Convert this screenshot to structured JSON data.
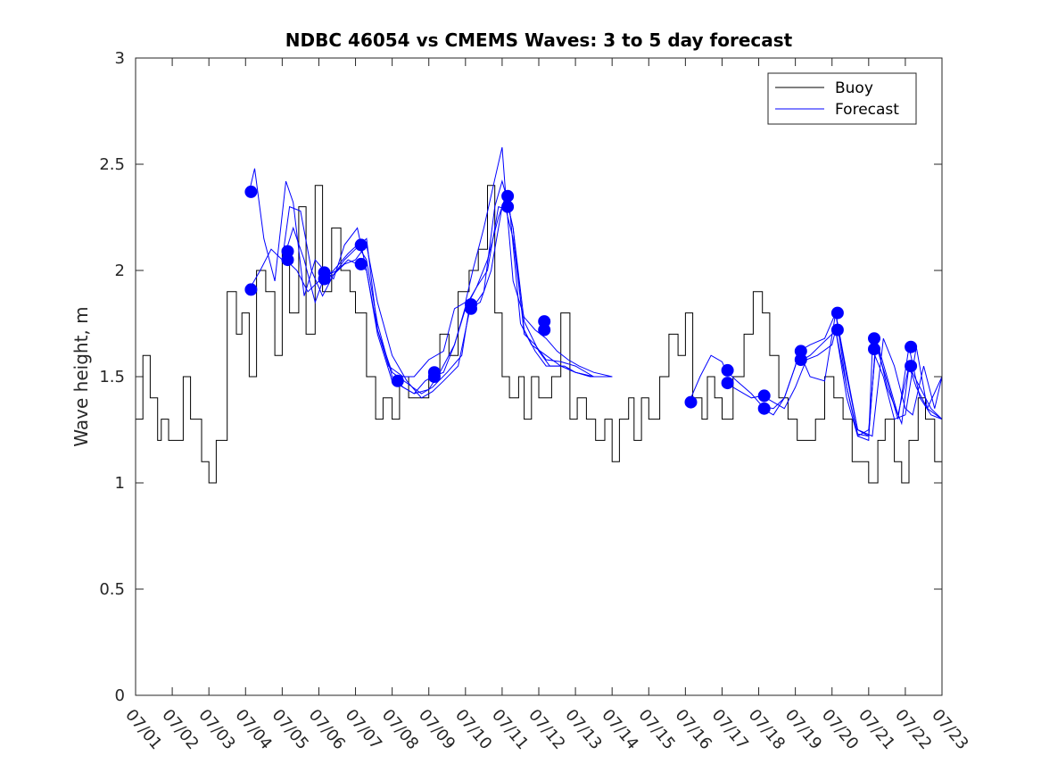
{
  "chart_data": {
    "type": "line",
    "title": "NDBC 46054 vs CMEMS Waves: 3 to 5 day forecast",
    "xlabel": "",
    "ylabel": "Wave height, m",
    "xlim": [
      "07/01",
      "07/23"
    ],
    "ylim": [
      0,
      3
    ],
    "x_ticks": [
      "07/01",
      "07/02",
      "07/03",
      "07/04",
      "07/05",
      "07/06",
      "07/07",
      "07/08",
      "07/09",
      "07/10",
      "07/11",
      "07/12",
      "07/13",
      "07/14",
      "07/15",
      "07/16",
      "07/17",
      "07/18",
      "07/19",
      "07/20",
      "07/21",
      "07/22",
      "07/23"
    ],
    "y_ticks": [
      "0",
      "0.5",
      "1",
      "1.5",
      "2",
      "2.5",
      "3"
    ],
    "grid": false,
    "legend": {
      "position": "top-right",
      "entries": [
        "Buoy",
        "Forecast"
      ]
    },
    "colors": {
      "buoy": "#000000",
      "forecast": "#0000ff"
    },
    "series": [
      {
        "name": "Buoy",
        "x_day": [
          0.0,
          0.2,
          0.4,
          0.6,
          0.7,
          0.9,
          1.0,
          1.3,
          1.5,
          1.8,
          2.0,
          2.2,
          2.5,
          2.75,
          2.9,
          3.1,
          3.3,
          3.55,
          3.8,
          4.0,
          4.2,
          4.45,
          4.65,
          4.9,
          5.1,
          5.35,
          5.6,
          5.85,
          6.0,
          6.3,
          6.55,
          6.75,
          7.0,
          7.2,
          7.45,
          7.75,
          8.0,
          8.3,
          8.55,
          8.8,
          9.1,
          9.35,
          9.6,
          9.8,
          10.0,
          10.2,
          10.45,
          10.6,
          10.8,
          11.0,
          11.15,
          11.35,
          11.6,
          11.85,
          12.05,
          12.3,
          12.55,
          12.8,
          13.0,
          13.2,
          13.45,
          13.6,
          13.8,
          14.0,
          14.3,
          14.55,
          14.8,
          15.0,
          15.2,
          15.45,
          15.6,
          15.8,
          16.0,
          16.3,
          16.6,
          16.85,
          17.1,
          17.3,
          17.55,
          17.8,
          18.05,
          18.3,
          18.55,
          18.8,
          19.05,
          19.3,
          19.55,
          19.8,
          20.0,
          20.25,
          20.45,
          20.7,
          20.9,
          21.1,
          21.35,
          21.55,
          21.8,
          22.0
        ],
        "values": [
          1.3,
          1.6,
          1.4,
          1.2,
          1.3,
          1.2,
          1.2,
          1.5,
          1.3,
          1.1,
          1.0,
          1.2,
          1.9,
          1.7,
          1.8,
          1.5,
          2.0,
          1.9,
          1.6,
          2.1,
          1.8,
          2.3,
          1.7,
          2.4,
          1.9,
          2.2,
          2.0,
          1.9,
          1.8,
          1.5,
          1.3,
          1.4,
          1.3,
          1.5,
          1.4,
          1.4,
          1.5,
          1.7,
          1.6,
          1.9,
          2.0,
          2.1,
          2.4,
          1.8,
          1.5,
          1.4,
          1.5,
          1.3,
          1.5,
          1.4,
          1.4,
          1.5,
          1.8,
          1.3,
          1.4,
          1.3,
          1.2,
          1.3,
          1.1,
          1.3,
          1.4,
          1.2,
          1.4,
          1.3,
          1.5,
          1.7,
          1.6,
          1.8,
          1.4,
          1.3,
          1.5,
          1.4,
          1.3,
          1.5,
          1.7,
          1.9,
          1.8,
          1.6,
          1.4,
          1.3,
          1.2,
          1.2,
          1.3,
          1.5,
          1.4,
          1.3,
          1.1,
          1.1,
          1.0,
          1.2,
          1.3,
          1.1,
          1.0,
          1.2,
          1.4,
          1.3,
          1.1,
          1.5
        ]
      },
      {
        "name": "Forecast",
        "runs": [
          {
            "x_day": [
              3.1,
              3.25,
              3.5,
              3.8,
              4.1,
              4.3,
              4.6,
              4.9,
              5.15,
              5.4,
              5.7,
              6.05,
              6.3,
              6.6,
              6.9,
              7.3,
              7.6,
              8.0,
              8.4,
              8.7,
              9.0,
              9.2,
              9.5,
              9.8,
              10.0,
              10.1,
              10.3,
              10.6,
              10.9,
              11.2,
              11.5,
              11.8,
              12.1,
              12.5,
              13.0
            ],
            "values": [
              2.37,
              2.48,
              2.15,
              1.95,
              2.42,
              2.32,
              1.88,
              2.05,
              2.0,
              1.96,
              2.12,
              2.2,
              2.0,
              1.72,
              1.55,
              1.5,
              1.5,
              1.58,
              1.62,
              1.82,
              1.85,
              2.0,
              2.2,
              2.43,
              2.58,
              2.35,
              1.95,
              1.78,
              1.72,
              1.68,
              1.62,
              1.58,
              1.55,
              1.52,
              1.5
            ]
          },
          {
            "x_day": [
              3.1,
              3.4,
              3.7,
              4.0,
              4.2,
              4.5,
              4.8,
              5.1,
              5.4,
              5.7,
              6.0,
              6.3,
              6.6,
              7.0,
              7.4,
              7.8,
              8.1,
              8.4,
              8.8,
              9.1,
              9.5,
              9.8,
              10.0,
              10.2,
              10.5,
              10.8,
              11.2,
              11.6,
              12.0,
              12.5,
              13.0
            ],
            "values": [
              1.91,
              2.0,
              2.1,
              2.05,
              2.3,
              2.28,
              2.0,
              1.88,
              1.98,
              2.03,
              2.05,
              2.12,
              1.85,
              1.6,
              1.48,
              1.4,
              1.43,
              1.48,
              1.55,
              1.8,
              1.9,
              2.3,
              2.42,
              2.3,
              1.75,
              1.65,
              1.6,
              1.55,
              1.52,
              1.5,
              1.5
            ]
          },
          {
            "x_day": [
              4.1,
              4.3,
              4.6,
              4.9,
              5.15,
              5.4,
              5.7,
              6.0,
              6.3,
              6.6,
              7.0,
              7.4,
              7.8,
              8.1,
              8.5,
              8.9,
              9.1,
              9.4,
              9.7,
              10.0,
              10.1,
              10.3,
              10.6,
              10.9,
              11.2,
              11.6,
              12.0,
              12.5,
              13.0
            ],
            "values": [
              2.09,
              2.2,
              2.05,
              1.85,
              1.97,
              1.98,
              2.05,
              2.1,
              2.15,
              1.72,
              1.52,
              1.47,
              1.42,
              1.45,
              1.52,
              1.6,
              1.82,
              1.85,
              2.0,
              2.3,
              2.35,
              2.2,
              1.7,
              1.65,
              1.58,
              1.57,
              1.55,
              1.5,
              1.5
            ]
          },
          {
            "x_day": [
              4.1,
              4.4,
              4.7,
              5.0,
              5.15,
              5.4,
              5.8,
              6.05,
              6.3,
              6.6,
              7.0,
              7.3,
              7.6,
              7.9,
              8.1,
              8.4,
              8.7,
              9.0,
              9.3,
              9.6,
              9.9,
              10.1,
              10.3,
              10.6,
              10.9,
              11.2,
              11.6,
              12.0,
              12.5,
              13.0
            ],
            "values": [
              2.05,
              2.0,
              1.9,
              1.95,
              1.96,
              2.0,
              2.08,
              2.12,
              2.05,
              1.75,
              1.5,
              1.45,
              1.42,
              1.48,
              1.5,
              1.52,
              1.65,
              1.82,
              1.92,
              2.0,
              2.3,
              2.29,
              2.15,
              1.72,
              1.62,
              1.55,
              1.55,
              1.52,
              1.5,
              1.5
            ]
          },
          {
            "x_day": [
              5.15,
              5.5,
              5.8,
              6.05,
              6.3,
              6.6,
              7.0,
              7.3,
              7.6,
              8.0,
              8.3,
              8.7,
              9.0,
              9.3,
              9.6,
              9.9,
              10.1,
              10.3,
              10.6,
              11.0,
              11.3,
              11.7,
              12.0,
              12.4,
              12.8,
              13.0
            ],
            "values": [
              1.97,
              2.0,
              2.05,
              2.03,
              2.0,
              1.7,
              1.48,
              1.45,
              1.42,
              1.44,
              1.52,
              1.65,
              1.83,
              1.92,
              2.05,
              2.25,
              2.35,
              2.2,
              1.76,
              1.62,
              1.55,
              1.55,
              1.52,
              1.5,
              1.5,
              1.5
            ]
          },
          {
            "x_day": [
              15.1,
              15.4,
              15.7,
              16.0,
              16.1,
              16.4,
              16.8,
              17.1,
              17.4,
              17.7,
              18.0,
              18.1,
              18.4,
              18.8,
              19.1,
              19.4,
              19.7,
              20.1,
              20.4,
              20.7,
              21.0,
              21.2,
              21.5,
              21.8,
              22.0
            ],
            "values": [
              1.38,
              1.5,
              1.6,
              1.57,
              1.53,
              1.48,
              1.42,
              1.36,
              1.35,
              1.4,
              1.55,
              1.62,
              1.65,
              1.68,
              1.8,
              1.52,
              1.25,
              1.22,
              1.68,
              1.55,
              1.35,
              1.32,
              1.55,
              1.35,
              1.5
            ]
          },
          {
            "x_day": [
              16.1,
              16.4,
              16.8,
              17.1,
              17.4,
              17.7,
              18.0,
              18.3,
              18.6,
              19.0,
              19.1,
              19.4,
              19.7,
              20.0,
              20.1,
              20.4,
              20.7,
              21.0,
              21.3,
              21.6,
              22.0
            ],
            "values": [
              1.47,
              1.44,
              1.4,
              1.41,
              1.38,
              1.35,
              1.45,
              1.58,
              1.6,
              1.65,
              1.72,
              1.45,
              1.22,
              1.2,
              1.63,
              1.5,
              1.3,
              1.32,
              1.64,
              1.35,
              1.3
            ]
          },
          {
            "x_day": [
              17.1,
              17.4,
              17.7,
              18.0,
              18.1,
              18.4,
              18.8,
              19.1,
              19.4,
              19.7,
              20.0,
              20.2,
              20.5,
              20.9,
              21.1,
              21.4,
              21.7,
              22.0
            ],
            "values": [
              1.35,
              1.32,
              1.4,
              1.55,
              1.62,
              1.5,
              1.48,
              1.8,
              1.5,
              1.25,
              1.22,
              1.68,
              1.45,
              1.28,
              1.55,
              1.45,
              1.35,
              1.3
            ]
          },
          {
            "x_day": [
              18.1,
              18.4,
              18.7,
              19.0,
              19.1,
              19.4,
              19.7,
              20.0,
              20.2,
              20.5,
              20.8,
              21.1,
              21.4,
              21.7,
              22.0
            ],
            "values": [
              1.57,
              1.6,
              1.65,
              1.7,
              1.72,
              1.4,
              1.22,
              1.25,
              1.65,
              1.48,
              1.3,
              1.64,
              1.4,
              1.32,
              1.3
            ]
          },
          {
            "x_day": [
              19.1,
              19.4,
              19.7,
              20.0,
              20.2,
              20.5,
              20.8,
              21.1,
              21.3,
              21.6,
              22.0
            ],
            "values": [
              1.8,
              1.45,
              1.23,
              1.22,
              1.68,
              1.5,
              1.32,
              1.55,
              1.45,
              1.35,
              1.5
            ]
          }
        ],
        "markers": [
          {
            "x_day": 3.15,
            "value": 2.37
          },
          {
            "x_day": 3.15,
            "value": 1.91
          },
          {
            "x_day": 4.15,
            "value": 2.09
          },
          {
            "x_day": 4.15,
            "value": 2.05
          },
          {
            "x_day": 5.15,
            "value": 1.99
          },
          {
            "x_day": 5.15,
            "value": 1.96
          },
          {
            "x_day": 6.15,
            "value": 2.12
          },
          {
            "x_day": 6.15,
            "value": 2.03
          },
          {
            "x_day": 7.15,
            "value": 1.48
          },
          {
            "x_day": 8.15,
            "value": 1.52
          },
          {
            "x_day": 8.15,
            "value": 1.5
          },
          {
            "x_day": 9.15,
            "value": 1.84
          },
          {
            "x_day": 9.15,
            "value": 1.82
          },
          {
            "x_day": 10.15,
            "value": 2.35
          },
          {
            "x_day": 10.15,
            "value": 2.3
          },
          {
            "x_day": 11.15,
            "value": 1.76
          },
          {
            "x_day": 11.15,
            "value": 1.72
          },
          {
            "x_day": 15.15,
            "value": 1.38
          },
          {
            "x_day": 16.15,
            "value": 1.53
          },
          {
            "x_day": 16.15,
            "value": 1.47
          },
          {
            "x_day": 17.15,
            "value": 1.41
          },
          {
            "x_day": 17.15,
            "value": 1.35
          },
          {
            "x_day": 18.15,
            "value": 1.62
          },
          {
            "x_day": 18.15,
            "value": 1.58
          },
          {
            "x_day": 19.15,
            "value": 1.8
          },
          {
            "x_day": 19.15,
            "value": 1.72
          },
          {
            "x_day": 20.15,
            "value": 1.68
          },
          {
            "x_day": 20.15,
            "value": 1.63
          },
          {
            "x_day": 21.15,
            "value": 1.64
          },
          {
            "x_day": 21.15,
            "value": 1.55
          }
        ]
      }
    ]
  }
}
